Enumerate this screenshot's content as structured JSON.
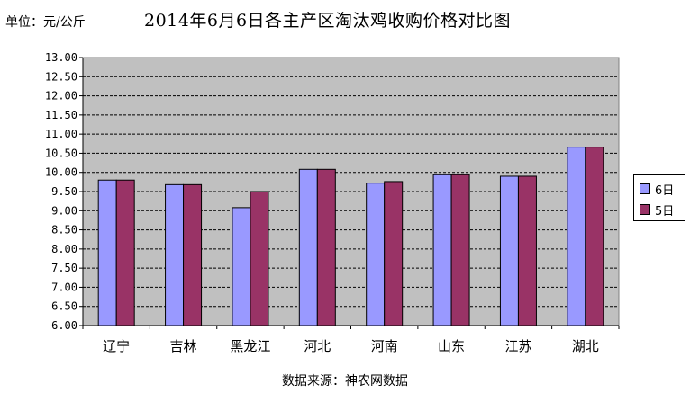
{
  "header": {
    "unit": "单位：元/公斤",
    "title": "2014年6月6日各主产区淘汰鸡收购价格对比图"
  },
  "footer": {
    "source": "数据来源：神农网数据"
  },
  "colors": {
    "series_6": "#9999ff",
    "series_5": "#993366",
    "plot_bg": "#c0c0c0"
  },
  "chart_data": {
    "type": "bar",
    "title": "2014年6月6日各主产区淘汰鸡收购价格对比图",
    "ylabel": "单位：元/公斤",
    "xlabel": "",
    "categories": [
      "辽宁",
      "吉林",
      "黑龙江",
      "河北",
      "河南",
      "山东",
      "江苏",
      "湖北"
    ],
    "series": [
      {
        "name": "6日",
        "color": "#9999ff",
        "values": [
          9.8,
          9.68,
          9.08,
          10.08,
          9.72,
          9.94,
          9.9,
          10.66
        ]
      },
      {
        "name": "5日",
        "color": "#993366",
        "values": [
          9.8,
          9.68,
          9.5,
          10.08,
          9.76,
          9.94,
          9.9,
          10.66
        ]
      }
    ],
    "ylim": [
      6.0,
      13.0
    ],
    "yticks": [
      "6.00",
      "6.50",
      "7.00",
      "7.50",
      "8.00",
      "8.50",
      "9.00",
      "9.50",
      "10.00",
      "10.50",
      "11.00",
      "11.50",
      "12.00",
      "12.50",
      "13.00"
    ],
    "grid": true,
    "legend_position": "right"
  }
}
